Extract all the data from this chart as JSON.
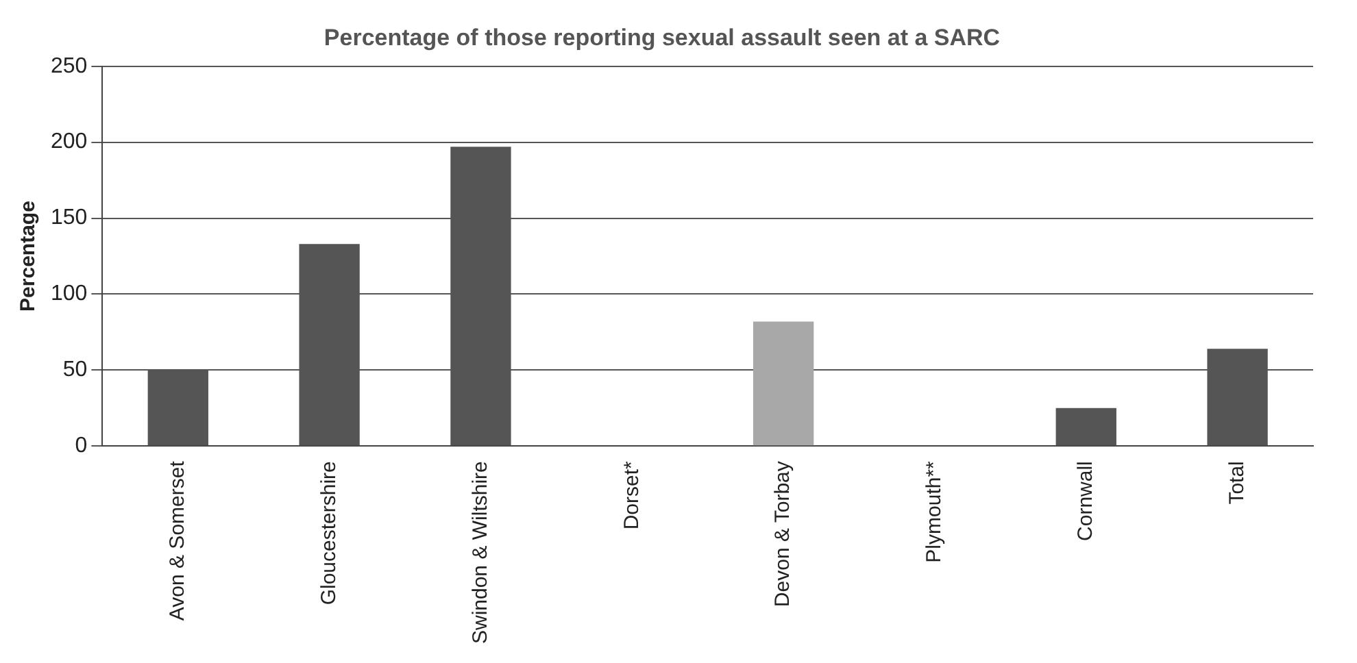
{
  "chart_data": {
    "type": "bar",
    "title": "Percentage of those reporting sexual assault seen at a SARC",
    "ylabel": "Percentage",
    "categories": [
      "Avon & Somerset",
      "Gloucestershire",
      "Swindon & Wiltshire",
      "Dorset*",
      "Devon & Torbay",
      "Plymouth**",
      "Cornwall",
      "Total"
    ],
    "values": [
      50,
      133,
      197,
      null,
      82,
      null,
      25,
      64
    ],
    "colors": [
      "#555555",
      "#555555",
      "#555555",
      "#555555",
      "#a8a8a8",
      "#555555",
      "#555555",
      "#555555"
    ],
    "ylim": [
      0,
      250
    ],
    "yticks": [
      0,
      50,
      100,
      150,
      200,
      250
    ],
    "grid": "y"
  }
}
